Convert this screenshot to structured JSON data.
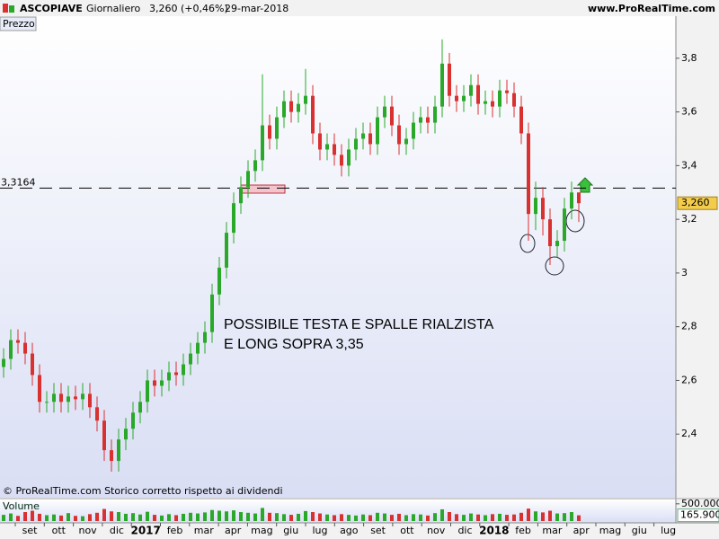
{
  "chart_data": {
    "type": "candlestick",
    "title": "ASCOPIAVE",
    "period": "Giornaliero",
    "last": "3,260 (+0,46%)",
    "date": "29-mar-2018",
    "source": "www.ProRealTime.com",
    "panel_label": "Prezzo",
    "footer": "© ProRealTime.com  Storico corretto rispetto ai dividendi",
    "annotation": [
      "POSSIBILE TESTA E SPALLE RIALZISTA",
      "E LONG SOPRA 3,35"
    ],
    "level": {
      "value": 3.3164,
      "label": "3,3164"
    },
    "last_price": {
      "value": 3.26,
      "label": "3,260"
    },
    "colors": {
      "up": "#2aa82a",
      "down": "#d93030"
    },
    "x_labels": [
      "set",
      "ott",
      "nov",
      "dic",
      "2017",
      "feb",
      "mar",
      "apr",
      "mag",
      "giu",
      "lug",
      "ago",
      "set",
      "ott",
      "nov",
      "dic",
      "2018",
      "feb",
      "mar",
      "apr",
      "mag",
      "giu",
      "lug"
    ],
    "ylim": [
      2.21,
      3.95
    ],
    "yticks": [
      {
        "value": 2.4,
        "label": "2,4"
      },
      {
        "value": 2.6,
        "label": "2,6"
      },
      {
        "value": 2.8,
        "label": "2,8"
      },
      3,
      {
        "value": 3.2,
        "label": "3,2"
      },
      {
        "value": 3.4,
        "label": "3,4"
      },
      {
        "value": 3.6,
        "label": "3,6"
      },
      {
        "value": 3.8,
        "label": "3,8"
      }
    ],
    "open": [
      2.65,
      2.68,
      2.75,
      2.74,
      2.7,
      2.62,
      2.52,
      2.52,
      2.55,
      2.52,
      2.54,
      2.53,
      2.55,
      2.5,
      2.45,
      2.34,
      2.3,
      2.38,
      2.42,
      2.48,
      2.52,
      2.6,
      2.58,
      2.6,
      2.63,
      2.62,
      2.66,
      2.7,
      2.74,
      2.78,
      2.92,
      3.02,
      3.15,
      3.26,
      3.32,
      3.38,
      3.42,
      3.55,
      3.5,
      3.58,
      3.64,
      3.6,
      3.63,
      3.66,
      3.52,
      3.46,
      3.48,
      3.44,
      3.4,
      3.46,
      3.5,
      3.52,
      3.48,
      3.58,
      3.62,
      3.55,
      3.48,
      3.5,
      3.56,
      3.58,
      3.56,
      3.62,
      3.78,
      3.66,
      3.64,
      3.66,
      3.7,
      3.63,
      3.64,
      3.62,
      3.68,
      3.67,
      3.62,
      3.52,
      3.22,
      3.28,
      3.2,
      3.1,
      3.12,
      3.24,
      3.3
    ],
    "high": [
      2.72,
      2.79,
      2.79,
      2.78,
      2.74,
      2.66,
      2.56,
      2.59,
      2.59,
      2.58,
      2.58,
      2.59,
      2.59,
      2.54,
      2.49,
      2.38,
      2.42,
      2.46,
      2.52,
      2.56,
      2.64,
      2.64,
      2.64,
      2.67,
      2.67,
      2.7,
      2.74,
      2.78,
      2.82,
      2.96,
      3.06,
      3.19,
      3.3,
      3.36,
      3.42,
      3.46,
      3.74,
      3.59,
      3.62,
      3.68,
      3.68,
      3.67,
      3.76,
      3.7,
      3.56,
      3.52,
      3.52,
      3.48,
      3.5,
      3.54,
      3.56,
      3.56,
      3.62,
      3.66,
      3.66,
      3.59,
      3.54,
      3.6,
      3.62,
      3.62,
      3.66,
      3.87,
      3.82,
      3.7,
      3.7,
      3.74,
      3.74,
      3.68,
      3.68,
      3.72,
      3.72,
      3.71,
      3.66,
      3.56,
      3.34,
      3.32,
      3.24,
      3.16,
      3.28,
      3.34,
      3.3
    ],
    "low": [
      2.61,
      2.64,
      2.7,
      2.66,
      2.58,
      2.48,
      2.48,
      2.48,
      2.48,
      2.48,
      2.49,
      2.49,
      2.46,
      2.41,
      2.3,
      2.26,
      2.26,
      2.34,
      2.38,
      2.44,
      2.48,
      2.54,
      2.54,
      2.56,
      2.58,
      2.58,
      2.62,
      2.66,
      2.7,
      2.74,
      2.88,
      2.98,
      3.11,
      3.22,
      3.28,
      3.34,
      3.38,
      3.46,
      3.46,
      3.54,
      3.56,
      3.56,
      3.59,
      3.48,
      3.42,
      3.42,
      3.4,
      3.36,
      3.36,
      3.42,
      3.46,
      3.44,
      3.44,
      3.54,
      3.51,
      3.44,
      3.44,
      3.46,
      3.52,
      3.52,
      3.52,
      3.58,
      3.62,
      3.6,
      3.6,
      3.62,
      3.59,
      3.59,
      3.58,
      3.58,
      3.63,
      3.58,
      3.48,
      3.12,
      3.16,
      3.14,
      3.03,
      3.06,
      3.08,
      3.2,
      3.19
    ],
    "close": [
      2.68,
      2.75,
      2.74,
      2.7,
      2.62,
      2.52,
      2.52,
      2.55,
      2.52,
      2.54,
      2.53,
      2.55,
      2.5,
      2.45,
      2.34,
      2.3,
      2.38,
      2.42,
      2.48,
      2.52,
      2.6,
      2.58,
      2.6,
      2.63,
      2.62,
      2.66,
      2.7,
      2.74,
      2.78,
      2.92,
      3.02,
      3.15,
      3.26,
      3.32,
      3.38,
      3.42,
      3.55,
      3.5,
      3.58,
      3.64,
      3.6,
      3.63,
      3.66,
      3.52,
      3.46,
      3.48,
      3.44,
      3.4,
      3.46,
      3.5,
      3.52,
      3.48,
      3.58,
      3.62,
      3.55,
      3.48,
      3.5,
      3.56,
      3.58,
      3.56,
      3.62,
      3.78,
      3.66,
      3.64,
      3.66,
      3.7,
      3.63,
      3.64,
      3.62,
      3.68,
      3.67,
      3.62,
      3.52,
      3.22,
      3.28,
      3.2,
      3.1,
      3.12,
      3.24,
      3.3,
      3.26
    ],
    "volume": {
      "label": "Volume",
      "ylim": [
        0,
        600000
      ],
      "yticks": [
        {
          "value": 500000,
          "label": "500.000"
        }
      ],
      "last": {
        "value": 165900,
        "label": "165.900"
      },
      "values": [
        180000,
        220000,
        150000,
        260000,
        300000,
        210000,
        170000,
        190000,
        160000,
        230000,
        150000,
        140000,
        200000,
        240000,
        350000,
        280000,
        260000,
        210000,
        230000,
        190000,
        270000,
        180000,
        160000,
        200000,
        170000,
        210000,
        240000,
        220000,
        250000,
        320000,
        300000,
        280000,
        310000,
        260000,
        240000,
        220000,
        380000,
        240000,
        230000,
        200000,
        180000,
        210000,
        290000,
        260000,
        220000,
        190000,
        170000,
        200000,
        180000,
        160000,
        190000,
        170000,
        240000,
        220000,
        180000,
        210000,
        170000,
        200000,
        190000,
        160000,
        230000,
        340000,
        260000,
        200000,
        180000,
        220000,
        190000,
        170000,
        200000,
        210000,
        180000,
        190000,
        240000,
        360000,
        280000,
        250000,
        300000,
        220000,
        230000,
        260000,
        165900
      ]
    }
  }
}
